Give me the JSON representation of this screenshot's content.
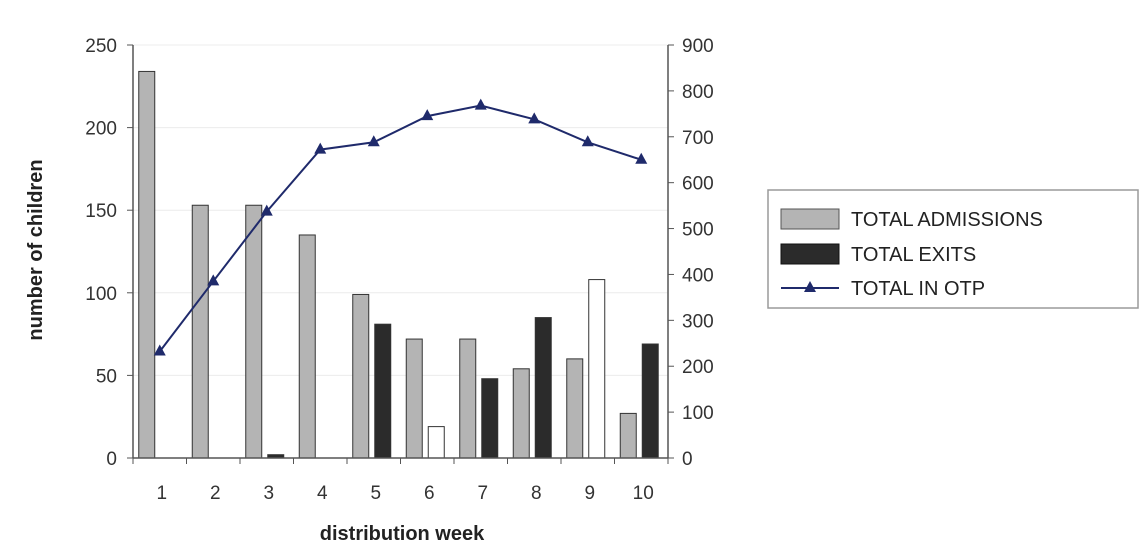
{
  "chart_data": {
    "type": "bar",
    "categories": [
      "1",
      "2",
      "3",
      "4",
      "5",
      "6",
      "7",
      "8",
      "9",
      "10"
    ],
    "xlabel": "distribution week",
    "ylabel": "number of children",
    "ylim": [
      0,
      250
    ],
    "y2lim": [
      0,
      900
    ],
    "y_ticks": [
      0,
      50,
      100,
      150,
      200,
      250
    ],
    "y2_ticks": [
      0,
      100,
      200,
      300,
      400,
      500,
      600,
      700,
      800,
      900
    ],
    "legend_position": "right",
    "series": [
      {
        "name": "TOTAL ADMISSIONS",
        "kind": "bar",
        "axis": "left",
        "color": "#b4b4b4",
        "values": [
          234,
          153,
          153,
          135,
          99,
          72,
          72,
          54,
          60,
          27
        ]
      },
      {
        "name": "TOTAL EXITS",
        "kind": "bar",
        "axis": "left",
        "color": "#2b2b2b",
        "values": [
          0,
          0,
          2,
          0,
          81,
          0,
          48,
          85,
          0,
          69
        ]
      },
      {
        "kind": "bar",
        "axis": "left",
        "color": "#ffffff",
        "values": [
          0,
          0,
          0,
          0,
          0,
          19,
          0,
          0,
          108,
          0
        ]
      },
      {
        "name": "TOTAL IN OTP",
        "kind": "line",
        "axis": "right",
        "color": "#1f2a6b",
        "values": [
          232,
          385,
          537,
          672,
          688,
          745,
          768,
          738,
          688,
          650
        ]
      }
    ]
  }
}
